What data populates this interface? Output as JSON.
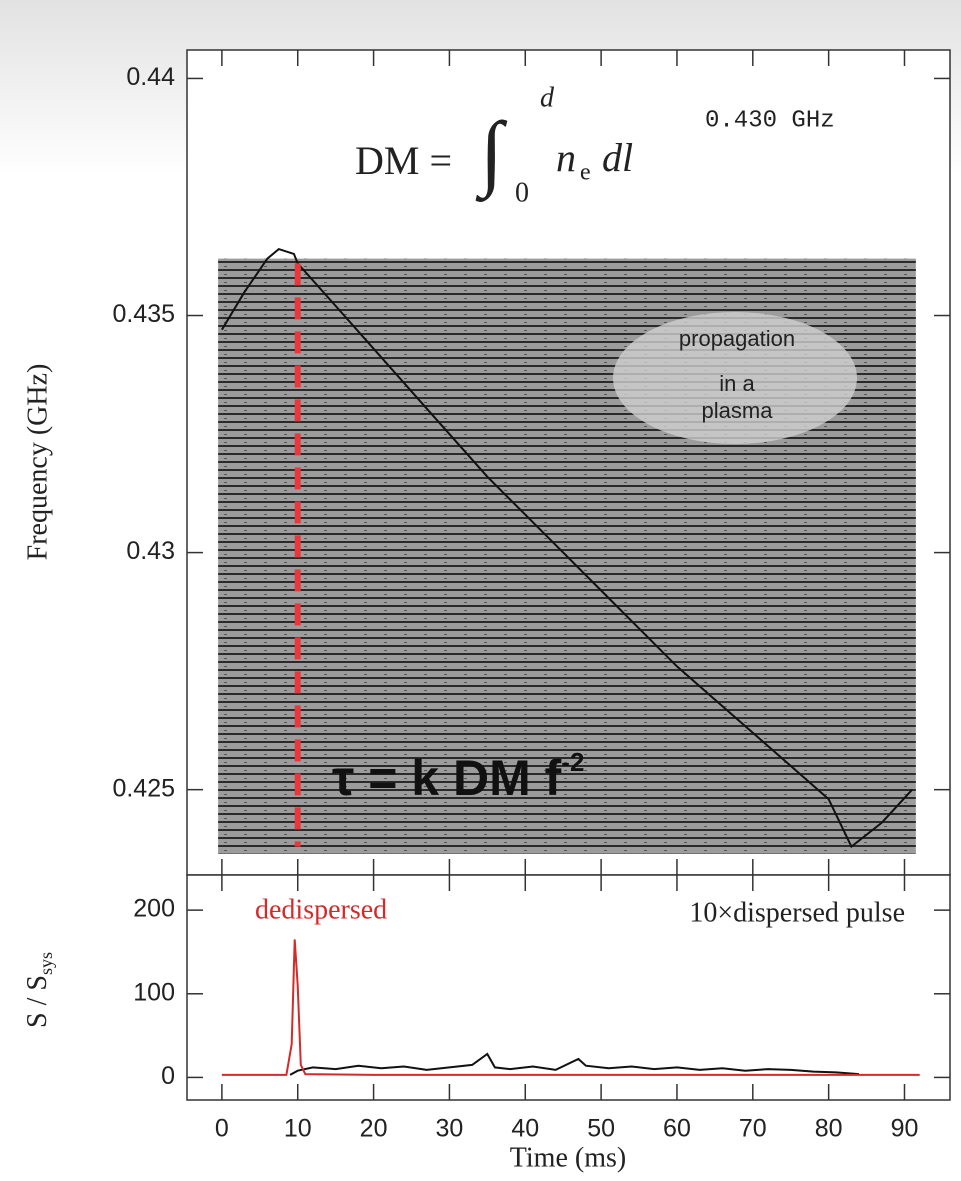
{
  "chart_data": [
    {
      "type": "line",
      "ylabel": "Frequency (GHz)",
      "xlim": [
        -4.6,
        96
      ],
      "xticks": [
        0,
        10,
        20,
        30,
        40,
        50,
        60,
        70,
        80,
        90
      ],
      "ylim": [
        0.4232,
        0.4406
      ],
      "yticks": [
        0.425,
        0.43,
        0.435,
        0.44
      ],
      "series": [
        {
          "color": "#111111",
          "dash": false,
          "x": [
            0,
            3,
            6,
            7.5,
            9.5,
            10,
            15,
            20,
            25,
            30,
            35,
            40,
            45,
            50,
            55,
            60,
            65,
            70,
            75,
            80,
            83,
            87,
            91
          ],
          "values": [
            0.4347,
            0.4355,
            0.4362,
            0.4364,
            0.4363,
            0.4361,
            0.4352,
            0.4343,
            0.4334,
            0.4325,
            0.4316,
            0.4308,
            0.43,
            0.4292,
            0.4284,
            0.4276,
            0.4269,
            0.4262,
            0.4255,
            0.4248,
            0.4238,
            0.4243,
            0.425
          ]
        },
        {
          "color": "#e8383d",
          "dash": true,
          "x": [
            10,
            10
          ],
          "values": [
            0.4361,
            0.4238
          ]
        }
      ],
      "band_label": "0.430 GHz",
      "formula": {
        "lhs": "DM =",
        "integral": "∫",
        "lower": "0",
        "upper": "d",
        "integrand": "n",
        "subscript": "e",
        "differential": "dl"
      },
      "bubble": [
        "propagation",
        "in a",
        "plasma"
      ],
      "delay": {
        "text": "τ = k DM f",
        "superscript": "-2"
      }
    },
    {
      "type": "line",
      "ylabel": {
        "text": "S / S",
        "subscript": "sys"
      },
      "xlabel": "Time (ms)",
      "xlim": [
        -4.6,
        96
      ],
      "xticks": [
        0,
        10,
        20,
        30,
        40,
        50,
        60,
        70,
        80,
        90
      ],
      "ylim": [
        -27,
        242
      ],
      "yticks": [
        0,
        100,
        200
      ],
      "series": [
        {
          "color": "#111111",
          "dash": false,
          "x": [
            9,
            10,
            12,
            15,
            18,
            21,
            24,
            27,
            30,
            33,
            35,
            36,
            38,
            41,
            44,
            47,
            48,
            51,
            54,
            57,
            60,
            63,
            66,
            69,
            72,
            75,
            78,
            81,
            84
          ],
          "values": [
            3,
            8,
            12,
            10,
            14,
            11,
            13,
            9,
            12,
            15,
            28,
            12,
            10,
            13,
            9,
            22,
            14,
            11,
            13,
            10,
            12,
            9,
            11,
            8,
            10,
            9,
            7,
            6,
            4
          ]
        },
        {
          "color": "#d42a2a",
          "dash": false,
          "x": [
            0,
            8.5,
            9.2,
            9.6,
            10,
            10.4,
            11,
            20,
            40,
            60,
            80,
            92
          ],
          "values": [
            3,
            3,
            40,
            165,
            110,
            15,
            4,
            3,
            3,
            3,
            3,
            3
          ]
        }
      ],
      "labels": {
        "left": "dedispersed",
        "right": "10×dispersed pulse"
      }
    }
  ]
}
